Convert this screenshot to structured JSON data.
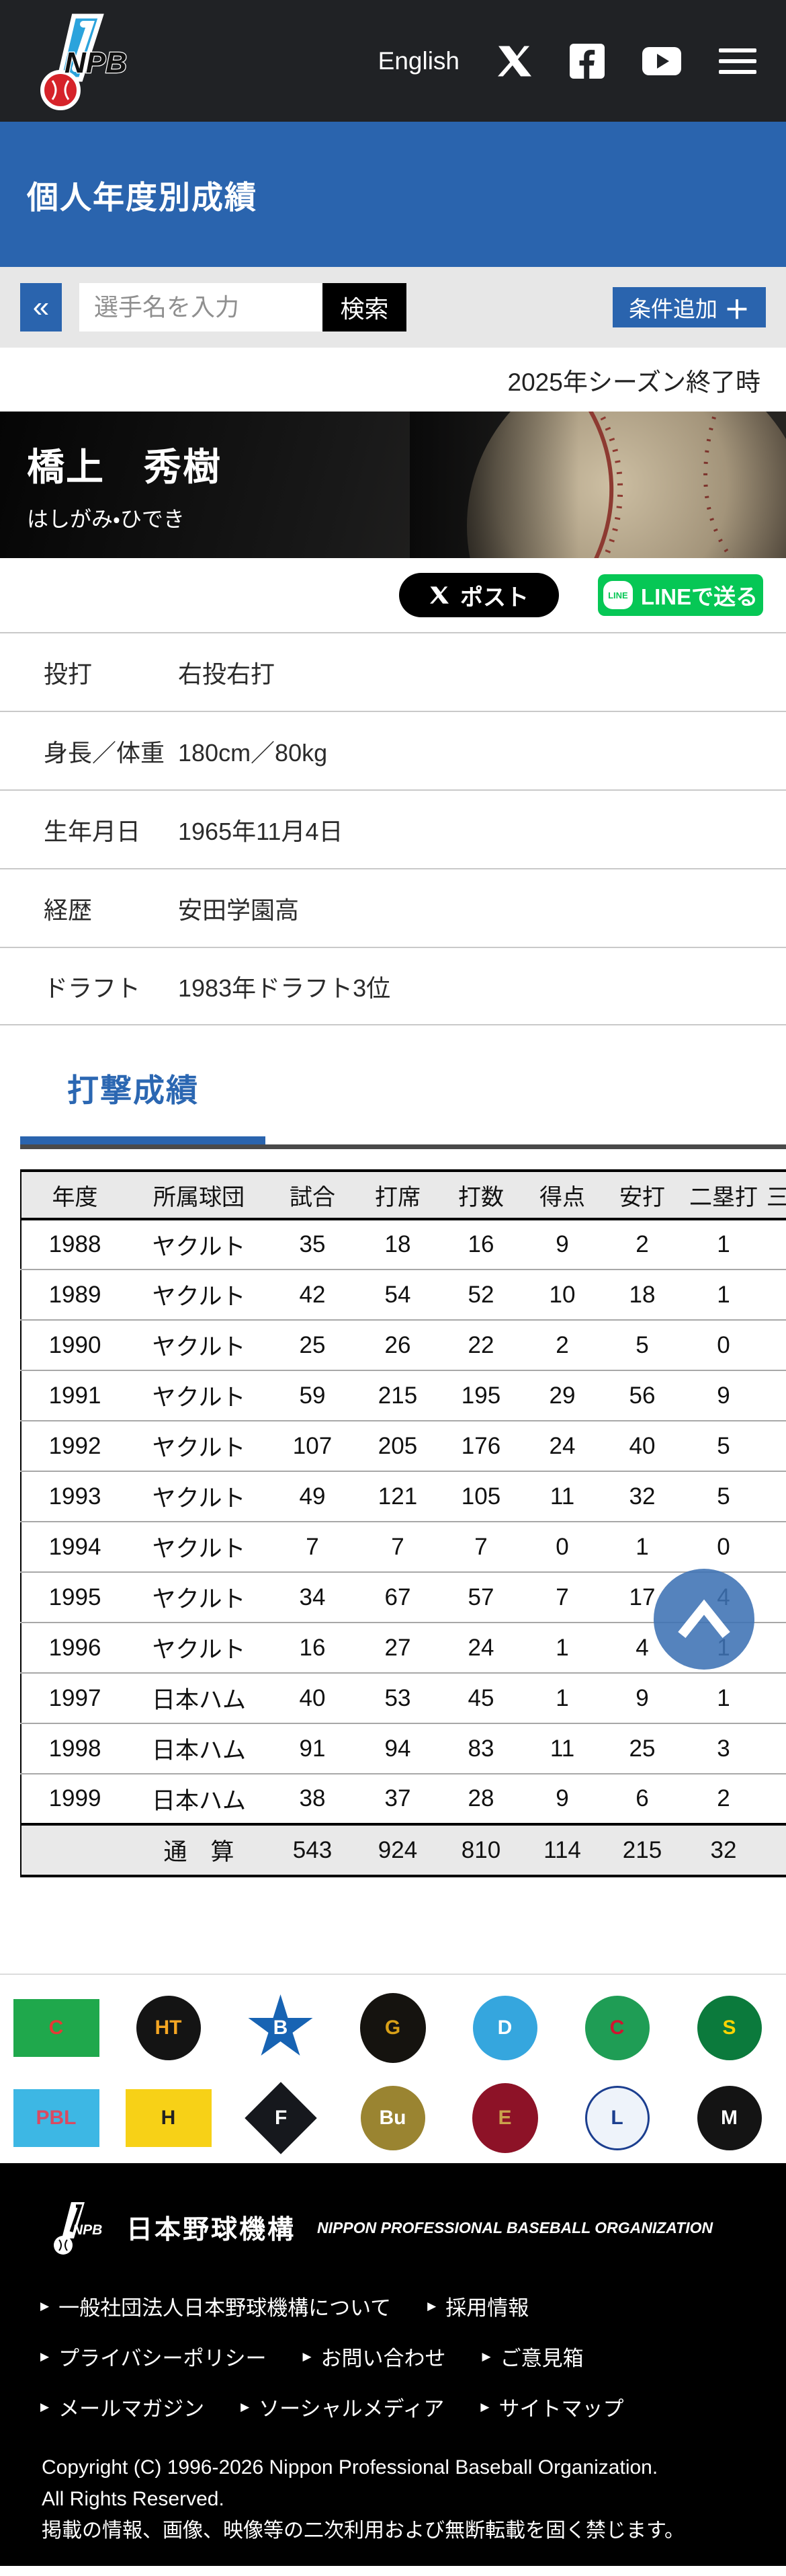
{
  "colors": {
    "accent_blue": "#2a64ae",
    "header_dark": "#202225",
    "line_green": "#06c755",
    "scroll_button_blue": "#3e72b4"
  },
  "header": {
    "english_label": "English"
  },
  "page_title": "個人年度別成績",
  "search": {
    "back_label": "«",
    "placeholder": "選手名を入力",
    "search_label": "検索",
    "add_condition_label": "条件追加",
    "add_condition_plus": "＋"
  },
  "season_note": "2025年シーズン終了時",
  "player": {
    "name": "橋上　秀樹",
    "kana": "はしがみ・ひでき"
  },
  "share": {
    "x_label": "ポスト",
    "line_label": "LINEで送る",
    "line_icon_text": "LINE"
  },
  "profile": [
    {
      "label": "投打",
      "value": "右投右打"
    },
    {
      "label": "身長／体重",
      "value": "180cm／80kg"
    },
    {
      "label": "生年月日",
      "value": "1965年11月4日"
    },
    {
      "label": "経歴",
      "value": "安田学園高"
    },
    {
      "label": "ドラフト",
      "value": "1983年ドラフト3位"
    }
  ],
  "stats": {
    "section_title": "打撃成績",
    "columns": [
      "年度",
      "所属球団",
      "試合",
      "打席",
      "打数",
      "得点",
      "安打",
      "二塁打",
      "三"
    ],
    "rows": [
      {
        "year": "1988",
        "team": "ヤクルト",
        "values": [
          "35",
          "18",
          "16",
          "9",
          "2",
          "1"
        ]
      },
      {
        "year": "1989",
        "team": "ヤクルト",
        "values": [
          "42",
          "54",
          "52",
          "10",
          "18",
          "1"
        ]
      },
      {
        "year": "1990",
        "team": "ヤクルト",
        "values": [
          "25",
          "26",
          "22",
          "2",
          "5",
          "0"
        ]
      },
      {
        "year": "1991",
        "team": "ヤクルト",
        "values": [
          "59",
          "215",
          "195",
          "29",
          "56",
          "9"
        ]
      },
      {
        "year": "1992",
        "team": "ヤクルト",
        "values": [
          "107",
          "205",
          "176",
          "24",
          "40",
          "5"
        ]
      },
      {
        "year": "1993",
        "team": "ヤクルト",
        "values": [
          "49",
          "121",
          "105",
          "11",
          "32",
          "5"
        ]
      },
      {
        "year": "1994",
        "team": "ヤクルト",
        "values": [
          "7",
          "7",
          "7",
          "0",
          "1",
          "0"
        ]
      },
      {
        "year": "1995",
        "team": "ヤクルト",
        "values": [
          "34",
          "67",
          "57",
          "7",
          "17",
          "4"
        ]
      },
      {
        "year": "1996",
        "team": "ヤクルト",
        "values": [
          "16",
          "27",
          "24",
          "1",
          "4",
          "1"
        ]
      },
      {
        "year": "1997",
        "team": "日本ハム",
        "values": [
          "40",
          "53",
          "45",
          "1",
          "9",
          "1"
        ]
      },
      {
        "year": "1998",
        "team": "日本ハム",
        "values": [
          "91",
          "94",
          "83",
          "11",
          "25",
          "3"
        ]
      },
      {
        "year": "1999",
        "team": "日本ハム",
        "values": [
          "38",
          "37",
          "28",
          "9",
          "6",
          "2"
        ]
      }
    ],
    "total": {
      "label": "通　算",
      "values": [
        "543",
        "924",
        "810",
        "114",
        "215",
        "32"
      ]
    }
  },
  "team_logos": [
    {
      "id": "central-league",
      "label": "C",
      "shape": "rect",
      "bg": "#1fa84c",
      "fg": "#e53935"
    },
    {
      "id": "hanshin-tigers",
      "label": "HT",
      "shape": "circle",
      "bg": "#141414",
      "fg": "#f5a623"
    },
    {
      "id": "dena-baystars",
      "label": "B",
      "shape": "star",
      "bg": "#1763b3",
      "fg": "#ffffff"
    },
    {
      "id": "yomiuri-giants",
      "label": "G",
      "shape": "oval",
      "bg": "#15130f",
      "fg": "#d8a018"
    },
    {
      "id": "chunichi-dragons",
      "label": "D",
      "shape": "circle",
      "bg": "#35a6de",
      "fg": "#ffffff"
    },
    {
      "id": "hiroshima-carp",
      "label": "C",
      "shape": "circle",
      "bg": "#1f9d55",
      "fg": "#d1132f"
    },
    {
      "id": "yakult-swallows",
      "label": "S",
      "shape": "circle",
      "bg": "#0b7a3c",
      "fg": "#ffd400"
    },
    {
      "id": "pacific-league",
      "label": "PBL",
      "shape": "rect",
      "bg": "#3db7e4",
      "fg": "#d94a62"
    },
    {
      "id": "softbank-hawks",
      "label": "H",
      "shape": "rect",
      "bg": "#f7d117",
      "fg": "#222222"
    },
    {
      "id": "nipponham-fighters",
      "label": "F",
      "shape": "diamond",
      "bg": "#16181d",
      "fg": "#ffffff"
    },
    {
      "id": "orix-buffaloes",
      "label": "Bu",
      "shape": "circle",
      "bg": "#9a8431",
      "fg": "#ffffff"
    },
    {
      "id": "rakuten-eagles",
      "label": "E",
      "shape": "oval",
      "bg": "#8d1227",
      "fg": "#caa24c"
    },
    {
      "id": "seibu-lions",
      "label": "L",
      "shape": "circle",
      "bg": "#eef3fa",
      "fg": "#1b3e8f"
    },
    {
      "id": "chiba-lotte-marines",
      "label": "M",
      "shape": "circle",
      "bg": "#141414",
      "fg": "#ffffff"
    }
  ],
  "footer": {
    "org_jp": "日本野球機構",
    "org_en": "NIPPON PROFESSIONAL BASEBALL ORGANIZATION",
    "link_rows": [
      [
        "一般社団法人日本野球機構について",
        "採用情報"
      ],
      [
        "プライバシーポリシー",
        "お問い合わせ",
        "ご意見箱"
      ],
      [
        "メールマガジン",
        "ソーシャルメディア",
        "サイトマップ"
      ]
    ],
    "copyright_lines": [
      "Copyright (C) 1996-2026 Nippon Professional Baseball Organization.",
      "All Rights Reserved.",
      "掲載の情報、画像、映像等の二次利用および無断転載を固く禁じます。"
    ]
  }
}
